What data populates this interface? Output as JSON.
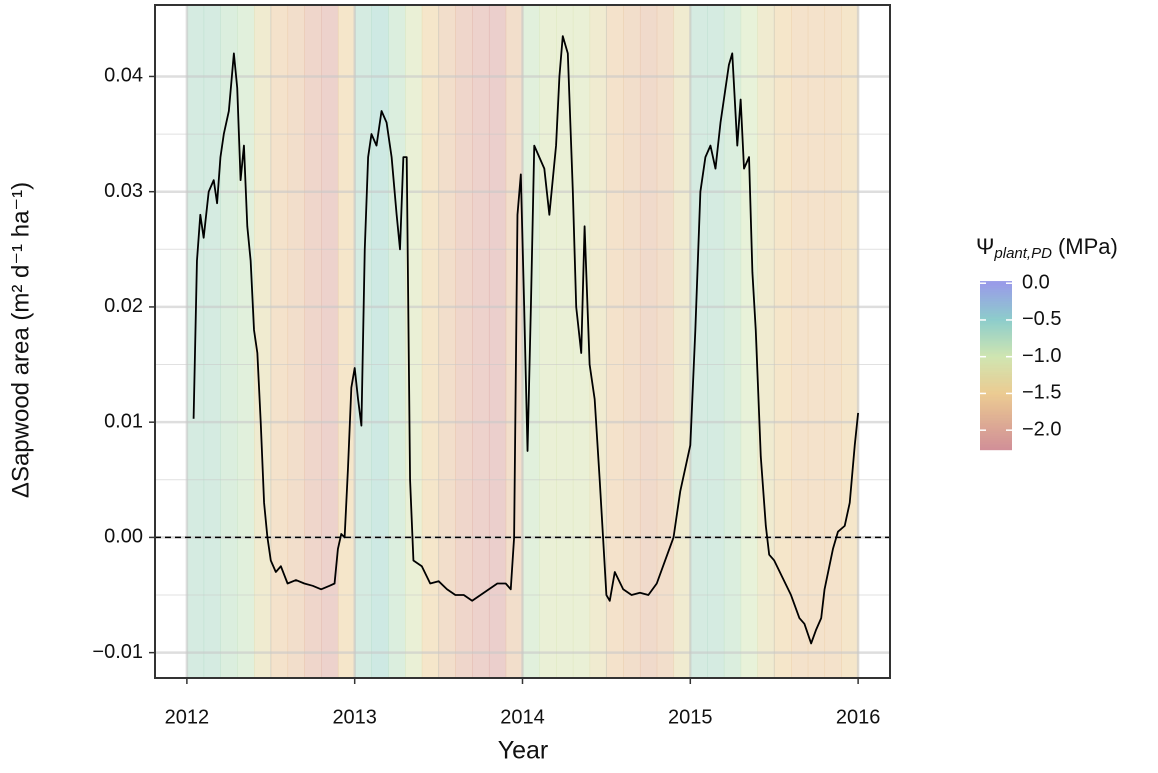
{
  "chart_data": {
    "type": "line",
    "xlabel": "Year",
    "ylabel": "ΔSapwood area (m² d⁻¹ ha⁻¹)",
    "xlim": [
      2011.81,
      2016.19
    ],
    "xticks": [
      2012,
      2013,
      2014,
      2015,
      2016
    ],
    "ylim": [
      -0.0122,
      0.0462
    ],
    "yticks": [
      {
        "value": -0.01,
        "label": "−0.01"
      },
      {
        "value": 0,
        "label": "0.00"
      },
      0.01,
      0.02,
      0.03,
      0.04
    ],
    "grid": true,
    "hline": 0,
    "series": [
      {
        "color": "#000000",
        "x": [
          2012.04,
          2012.06,
          2012.08,
          2012.1,
          2012.13,
          2012.16,
          2012.18,
          2012.2,
          2012.22,
          2012.25,
          2012.28,
          2012.3,
          2012.32,
          2012.34,
          2012.36,
          2012.38,
          2012.4,
          2012.42,
          2012.44,
          2012.46,
          2012.48,
          2012.5,
          2012.53,
          2012.56,
          2012.6,
          2012.65,
          2012.7,
          2012.75,
          2012.8,
          2012.85,
          2012.88,
          2012.9,
          2012.92,
          2012.94,
          2012.96,
          2012.98,
          2013.0,
          2013.02,
          2013.04,
          2013.06,
          2013.08,
          2013.1,
          2013.13,
          2013.16,
          2013.19,
          2013.22,
          2013.25,
          2013.27,
          2013.29,
          2013.31,
          2013.33,
          2013.35,
          2013.4,
          2013.45,
          2013.5,
          2013.55,
          2013.6,
          2013.65,
          2013.7,
          2013.75,
          2013.8,
          2013.85,
          2013.9,
          2013.93,
          2013.95,
          2013.97,
          2013.99,
          2014.01,
          2014.03,
          2014.05,
          2014.07,
          2014.1,
          2014.13,
          2014.16,
          2014.2,
          2014.22,
          2014.24,
          2014.27,
          2014.3,
          2014.32,
          2014.35,
          2014.37,
          2014.4,
          2014.43,
          2014.46,
          2014.48,
          2014.5,
          2014.52,
          2014.55,
          2014.6,
          2014.65,
          2014.7,
          2014.75,
          2014.8,
          2014.85,
          2014.9,
          2014.94,
          2014.97,
          2015.0,
          2015.03,
          2015.06,
          2015.09,
          2015.12,
          2015.15,
          2015.18,
          2015.2,
          2015.23,
          2015.25,
          2015.28,
          2015.3,
          2015.32,
          2015.35,
          2015.37,
          2015.39,
          2015.42,
          2015.45,
          2015.47,
          2015.5,
          2015.55,
          2015.6,
          2015.65,
          2015.68,
          2015.72,
          2015.75,
          2015.78,
          2015.8,
          2015.85,
          2015.88,
          2015.92,
          2015.95,
          2015.98,
          2016.0
        ],
        "values": [
          0.0103,
          0.024,
          0.028,
          0.026,
          0.03,
          0.031,
          0.029,
          0.033,
          0.035,
          0.037,
          0.042,
          0.039,
          0.031,
          0.034,
          0.027,
          0.024,
          0.018,
          0.016,
          0.01,
          0.003,
          0.0,
          -0.002,
          -0.003,
          -0.0025,
          -0.004,
          -0.0037,
          -0.004,
          -0.0042,
          -0.0045,
          -0.0042,
          -0.004,
          -0.001,
          0.0003,
          0.0,
          0.006,
          0.013,
          0.0147,
          0.012,
          0.0097,
          0.025,
          0.033,
          0.035,
          0.034,
          0.037,
          0.036,
          0.033,
          0.028,
          0.025,
          0.033,
          0.033,
          0.005,
          -0.002,
          -0.0025,
          -0.004,
          -0.0038,
          -0.0045,
          -0.005,
          -0.005,
          -0.0055,
          -0.005,
          -0.0045,
          -0.004,
          -0.004,
          -0.0045,
          0.0,
          0.028,
          0.0315,
          0.02,
          0.0075,
          0.02,
          0.034,
          0.033,
          0.032,
          0.028,
          0.034,
          0.04,
          0.0435,
          0.042,
          0.03,
          0.02,
          0.016,
          0.027,
          0.015,
          0.012,
          0.005,
          0.0,
          -0.005,
          -0.0055,
          -0.003,
          -0.0045,
          -0.005,
          -0.0048,
          -0.005,
          -0.004,
          -0.002,
          0.0,
          0.004,
          0.006,
          0.008,
          0.018,
          0.03,
          0.033,
          0.034,
          0.032,
          0.036,
          0.038,
          0.041,
          0.042,
          0.034,
          0.038,
          0.032,
          0.033,
          0.023,
          0.018,
          0.007,
          0.001,
          -0.0015,
          -0.002,
          -0.0035,
          -0.005,
          -0.007,
          -0.0075,
          -0.0092,
          -0.008,
          -0.007,
          -0.0045,
          -0.001,
          0.0005,
          0.001,
          0.003,
          0.008,
          0.0108
        ]
      }
    ],
    "background": {
      "edges": [
        2012.0,
        2012.1,
        2012.2,
        2012.3,
        2012.4,
        2012.5,
        2012.6,
        2012.7,
        2012.8,
        2012.9,
        2013.0,
        2013.1,
        2013.2,
        2013.3,
        2013.4,
        2013.5,
        2013.6,
        2013.7,
        2013.8,
        2013.9,
        2014.0,
        2014.1,
        2014.2,
        2014.3,
        2014.4,
        2014.5,
        2014.6,
        2014.7,
        2014.8,
        2014.9,
        2015.0,
        2015.1,
        2015.2,
        2015.3,
        2015.4,
        2015.5,
        2015.6,
        2015.7,
        2015.8,
        2015.9,
        2016.0
      ],
      "values": [
        -0.7,
        -0.7,
        -0.8,
        -0.9,
        -1.3,
        -1.6,
        -1.7,
        -1.9,
        -2.0,
        -1.5,
        -0.7,
        -0.6,
        -0.8,
        -1.1,
        -1.5,
        -1.7,
        -1.9,
        -2.0,
        -2.1,
        -1.7,
        -0.9,
        -1.1,
        -1.1,
        -1.1,
        -1.3,
        -1.6,
        -1.7,
        -1.8,
        -1.7,
        -1.3,
        -0.7,
        -0.7,
        -0.8,
        -1.0,
        -1.3,
        -1.5,
        -1.6,
        -1.6,
        -1.6,
        -1.5
      ]
    },
    "colorbar": {
      "title": {
        "symbol": "Ψ",
        "subscript": "plant,PD",
        "unit": "(MPa)"
      },
      "clim": [
        -2.27,
        0.03
      ],
      "ticks": [
        {
          "value": 0,
          "label": "0.0"
        },
        {
          "value": -0.5,
          "label": "−0.5"
        },
        {
          "value": -1.0,
          "label": "−1.0"
        },
        {
          "value": -1.5,
          "label": "−1.5"
        },
        {
          "value": -2.0,
          "label": "−2.0"
        }
      ],
      "colormap": [
        {
          "value": -2.27,
          "color": "#c4707c"
        },
        {
          "value": -2.0,
          "color": "#cf8a78"
        },
        {
          "value": -1.5,
          "color": "#e6bd74"
        },
        {
          "value": -1.0,
          "color": "#c2de9c"
        },
        {
          "value": -0.5,
          "color": "#6ebfbd"
        },
        {
          "value": 0,
          "color": "#7e80e2"
        }
      ]
    }
  }
}
